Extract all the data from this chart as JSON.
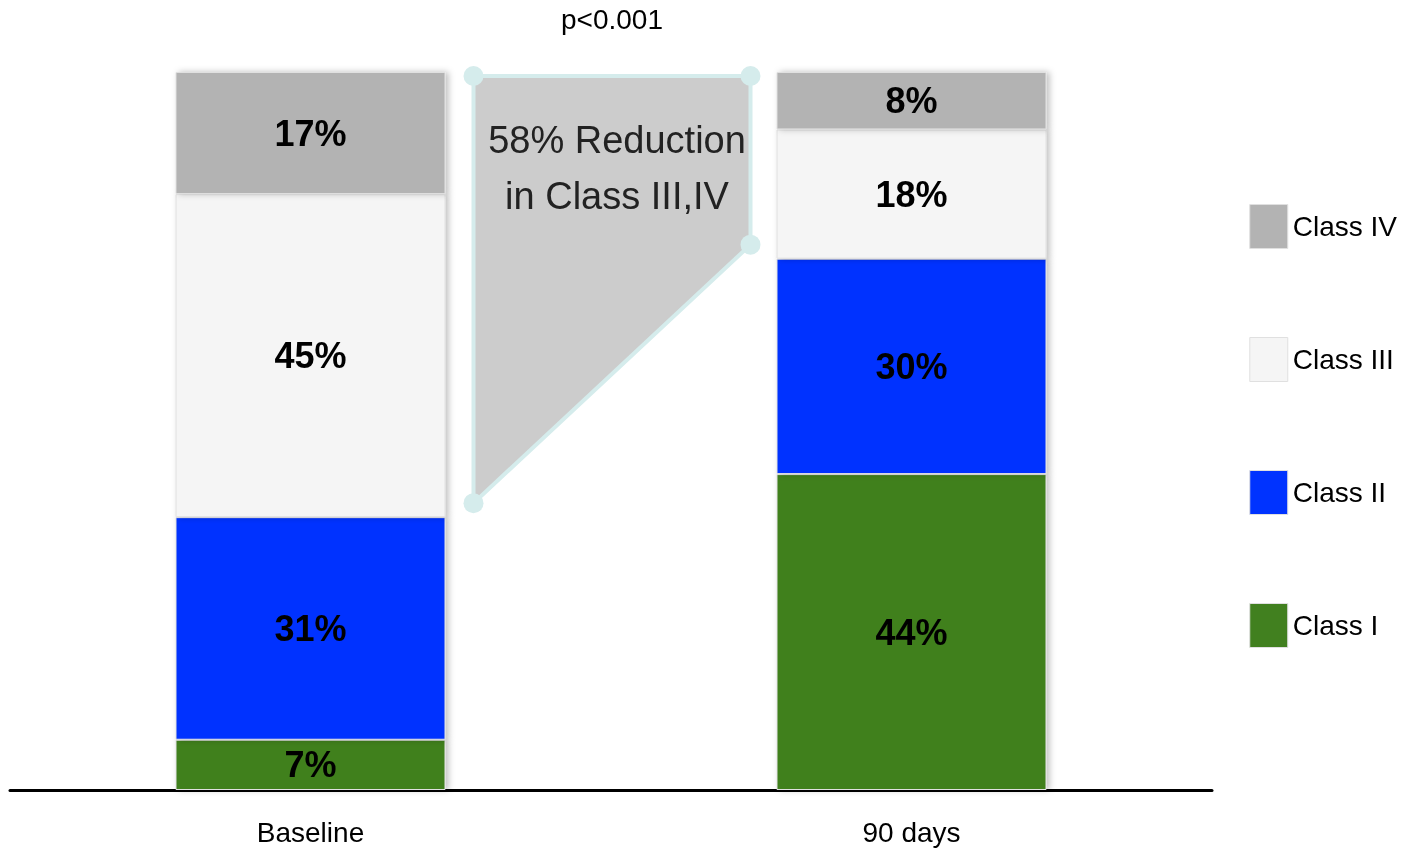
{
  "chart_data": {
    "type": "bar",
    "stacked": true,
    "categories": [
      "Baseline",
      "90 days"
    ],
    "series": [
      {
        "name": "Class I",
        "color": "#41801f",
        "values": [
          7,
          44
        ],
        "value_labels": [
          "7%",
          "44%"
        ]
      },
      {
        "name": "Class II",
        "color": "#0033ff",
        "values": [
          31,
          30
        ],
        "value_labels": [
          "31%",
          "30%"
        ]
      },
      {
        "name": "Class III",
        "color": "#f5f5f5",
        "values": [
          45,
          18
        ],
        "value_labels": [
          "45%",
          "18%"
        ]
      },
      {
        "name": "Class IV",
        "color": "#b3b3b3",
        "values": [
          17,
          8
        ],
        "value_labels": [
          "17%",
          "8%"
        ]
      }
    ],
    "legend": "right",
    "annotations": [
      "p<0.001",
      "58% Reduction in Class III,IV"
    ]
  }
}
